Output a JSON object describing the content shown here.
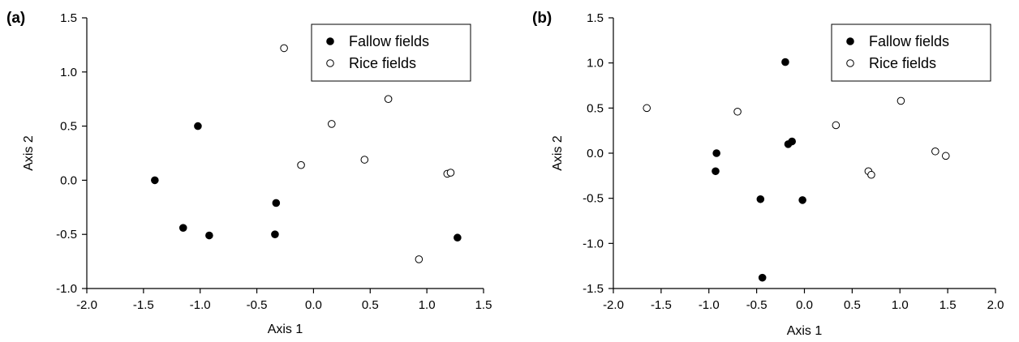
{
  "chart_data": [
    {
      "type": "scatter",
      "panel_label": "(a)",
      "xlabel": "Axis 1",
      "ylabel": "Axis 2",
      "xlim": [
        -2.0,
        1.5
      ],
      "ylim": [
        -1.0,
        1.5
      ],
      "xticks": [
        "-2.0",
        "-1.5",
        "-1.0",
        "-0.5",
        "0.0",
        "0.5",
        "1.0",
        "1.5"
      ],
      "yticks": [
        "-1.0",
        "-0.5",
        "0.0",
        "0.5",
        "1.0",
        "1.5"
      ],
      "legend_position": "top-right",
      "grid": false,
      "series": [
        {
          "name": "Fallow fields",
          "marker": "filled-circle",
          "color": "#000000",
          "points": [
            [
              -1.4,
              0.0
            ],
            [
              -1.02,
              0.5
            ],
            [
              -1.15,
              -0.44
            ],
            [
              -0.92,
              -0.51
            ],
            [
              -0.33,
              -0.21
            ],
            [
              -0.34,
              -0.5
            ],
            [
              1.27,
              -0.53
            ]
          ]
        },
        {
          "name": "Rice fields",
          "marker": "open-circle",
          "color": "#000000",
          "points": [
            [
              -0.26,
              1.22
            ],
            [
              0.16,
              0.52
            ],
            [
              0.66,
              0.75
            ],
            [
              -0.11,
              0.14
            ],
            [
              0.45,
              0.19
            ],
            [
              1.18,
              0.06
            ],
            [
              1.21,
              0.07
            ],
            [
              0.93,
              -0.73
            ]
          ]
        }
      ]
    },
    {
      "type": "scatter",
      "panel_label": "(b)",
      "xlabel": "Axis 1",
      "ylabel": "Axis 2",
      "xlim": [
        -2.0,
        2.0
      ],
      "ylim": [
        -1.5,
        1.5
      ],
      "xticks": [
        "-2.0",
        "-1.5",
        "-1.0",
        "-0.5",
        "0.0",
        "0.5",
        "1.0",
        "1.5",
        "2.0"
      ],
      "yticks": [
        "-1.5",
        "-1.0",
        "-0.5",
        "0.0",
        "0.5",
        "1.0",
        "1.5"
      ],
      "legend_position": "top-right",
      "grid": false,
      "series": [
        {
          "name": "Fallow fields",
          "marker": "filled-circle",
          "color": "#000000",
          "points": [
            [
              -0.2,
              1.01
            ],
            [
              -0.17,
              0.1
            ],
            [
              -0.13,
              0.13
            ],
            [
              -0.92,
              0.0
            ],
            [
              -0.93,
              -0.2
            ],
            [
              -0.46,
              -0.51
            ],
            [
              -0.02,
              -0.52
            ],
            [
              -0.44,
              -1.38
            ]
          ]
        },
        {
          "name": "Rice fields",
          "marker": "open-circle",
          "color": "#000000",
          "points": [
            [
              -1.65,
              0.5
            ],
            [
              -0.7,
              0.46
            ],
            [
              0.33,
              0.31
            ],
            [
              1.01,
              0.58
            ],
            [
              0.67,
              -0.2
            ],
            [
              0.7,
              -0.24
            ],
            [
              1.37,
              0.02
            ],
            [
              1.48,
              -0.03
            ]
          ]
        }
      ]
    }
  ]
}
